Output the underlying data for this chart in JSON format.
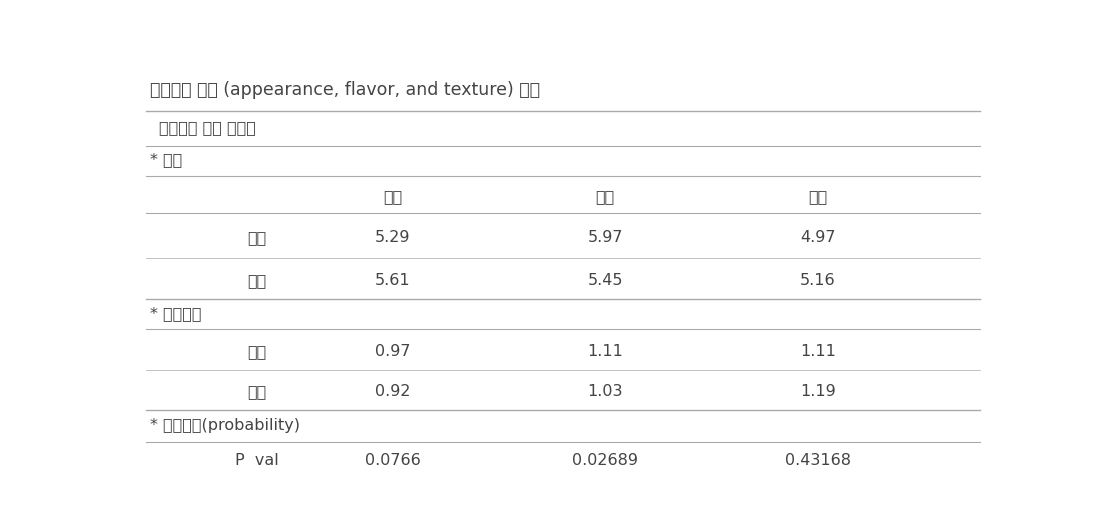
{
  "title": "관능품질 강도 (appearance, flavor, and texture) 분석",
  "subtitle": "특성강도 요약 테이블",
  "col_headers": [
    "색상",
    "신맛",
    "단맛"
  ],
  "section1_label": "* 평균",
  "section2_label": "* 표준편차",
  "section3_label": "* 유의확률(probability)",
  "rows": [
    {
      "label": "기본",
      "values": [
        "5.29",
        "5.97",
        "4.97"
      ]
    },
    {
      "label": "미강",
      "values": [
        "5.61",
        "5.45",
        "5.16"
      ]
    }
  ],
  "rows2": [
    {
      "label": "기본",
      "values": [
        "0.97",
        "1.11",
        "1.11"
      ]
    },
    {
      "label": "미강",
      "values": [
        "0.92",
        "1.03",
        "1.19"
      ]
    }
  ],
  "pval_row": {
    "label": "P  val",
    "values": [
      "0.0766",
      "0.02689",
      "0.43168"
    ]
  },
  "bg_color": "#ffffff",
  "text_color": "#444444",
  "line_color": "#aaaaaa",
  "font_size": 11.5,
  "title_font_size": 12.5
}
